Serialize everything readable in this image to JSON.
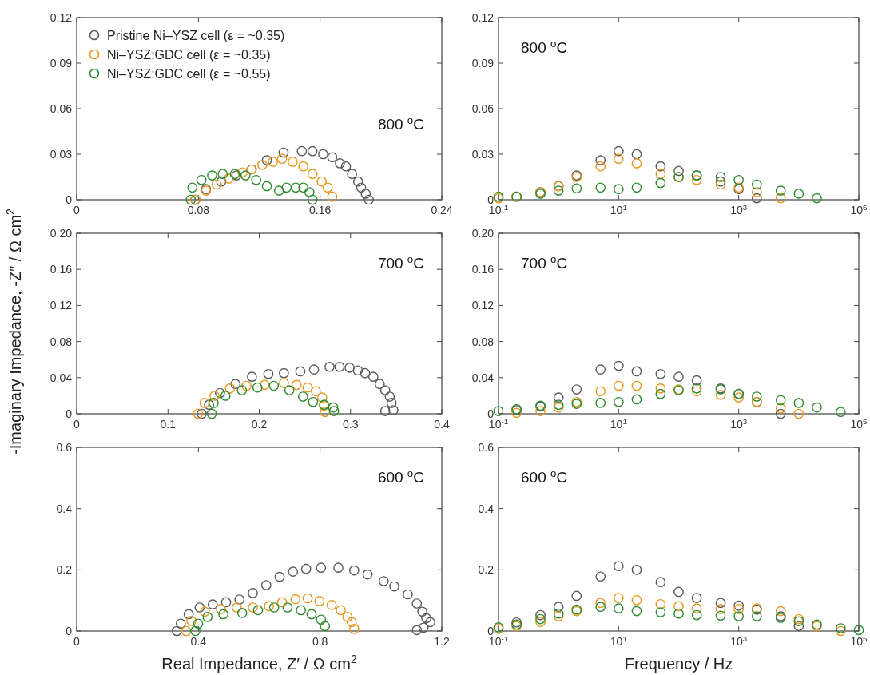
{
  "chart_data": [
    {
      "type": "scatter",
      "marker": "circle",
      "legend": "top left",
      "xlim": [
        0,
        0.24
      ],
      "xticks": [
        0,
        0.08,
        0.16,
        0.24
      ],
      "ylim": [
        0,
        0.12
      ],
      "yticks": [
        0,
        0.03,
        0.06,
        0.09,
        0.12
      ],
      "annotations": [
        "800 $^{o}$C"
      ],
      "series": [
        {
          "name": "Pristine Ni–YSZ cell (ε = ~0.35)",
          "color": "#5a5a5a",
          "x": [
            0.078,
            0.085,
            0.095,
            0.105,
            0.115,
            0.125,
            0.136,
            0.148,
            0.155,
            0.162,
            0.168,
            0.173,
            0.177,
            0.181,
            0.185,
            0.187,
            0.19,
            0.192
          ],
          "values": [
            0,
            0.007,
            0.012,
            0.016,
            0.02,
            0.026,
            0.031,
            0.032,
            0.032,
            0.03,
            0.028,
            0.024,
            0.022,
            0.017,
            0.012,
            0.008,
            0.004,
            0
          ]
        },
        {
          "name": "Ni–YSZ:GDC cell (ε = ~0.35)",
          "color": "#e8961e",
          "x": [
            0.078,
            0.085,
            0.092,
            0.1,
            0.109,
            0.115,
            0.122,
            0.129,
            0.135,
            0.142,
            0.149,
            0.155,
            0.161,
            0.165,
            0.168
          ],
          "values": [
            0,
            0.006,
            0.01,
            0.014,
            0.018,
            0.02,
            0.023,
            0.025,
            0.027,
            0.025,
            0.022,
            0.017,
            0.012,
            0.008,
            0.002
          ]
        },
        {
          "name": "Ni–YSZ:GDC cell (ε = ~0.55)",
          "color": "#2e8b2e",
          "x": [
            0.075,
            0.076,
            0.082,
            0.089,
            0.096,
            0.104,
            0.111,
            0.118,
            0.125,
            0.133,
            0.138,
            0.144,
            0.149,
            0.153,
            0.155
          ],
          "values": [
            0,
            0.008,
            0.013,
            0.016,
            0.017,
            0.017,
            0.016,
            0.013,
            0.009,
            0.006,
            0.008,
            0.008,
            0.008,
            0.005,
            0
          ]
        }
      ]
    },
    {
      "type": "scatter",
      "marker": "circle",
      "log": "x",
      "x": [
        0.1,
        0.2,
        0.5,
        1,
        2,
        5,
        10,
        20,
        50,
        100,
        200,
        500,
        1000,
        2000,
        5000,
        10000,
        20000
      ],
      "xlim": [
        0.1,
        100000
      ],
      "xticks": [
        {
          "value": 0.1,
          "label": "10$^{-1}$"
        },
        {
          "value": 10,
          "label": "10$^{1}$"
        },
        {
          "value": 1000,
          "label": "10$^{3}$"
        },
        {
          "value": 100000,
          "label": "10$^{5}$"
        }
      ],
      "ylim": [
        0,
        0.12
      ],
      "yticks": [
        0,
        0.03,
        0.06,
        0.09,
        0.12
      ],
      "annotations": [
        "800 $^{o}$C"
      ],
      "series": [
        {
          "color": "#5a5a5a",
          "values": [
            null,
            null,
            0.005,
            0.009,
            0.016,
            0.026,
            0.032,
            0.03,
            0.022,
            0.019,
            0.016,
            0.012,
            0.007,
            0.001,
            null,
            null,
            null
          ]
        },
        {
          "color": "#e8961e",
          "values": [
            0.001,
            0.002,
            0.005,
            0.009,
            0.015,
            0.022,
            0.027,
            0.024,
            0.017,
            0.015,
            0.013,
            0.01,
            0.008,
            0.005,
            0.001,
            null,
            null
          ]
        },
        {
          "color": "#2e8b2e",
          "values": [
            0.002,
            0.002,
            0.004,
            0.006,
            0.0075,
            0.008,
            0.007,
            0.008,
            0.011,
            0.015,
            0.016,
            0.015,
            0.013,
            0.01,
            0.006,
            0.004,
            0.001
          ]
        }
      ]
    },
    {
      "type": "scatter",
      "marker": "circle",
      "ylabel": "-Imaginary Impedance, -Z″ / Ω cm$^{2}$",
      "xlim": [
        0,
        0.4
      ],
      "xticks": [
        0,
        0.1,
        0.2,
        0.3,
        0.4
      ],
      "ylim": [
        0,
        0.2
      ],
      "yticks": [
        0,
        0.04,
        0.08,
        0.12,
        0.16,
        {
          "value": 0.2,
          "label": "0.20"
        }
      ],
      "annotations": [
        "700 $^{o}$C"
      ],
      "series": [
        {
          "color": "#5a5a5a",
          "x": [
            0.137,
            0.145,
            0.157,
            0.174,
            0.192,
            0.21,
            0.227,
            0.245,
            0.26,
            0.277,
            0.288,
            0.299,
            0.308,
            0.316,
            0.325,
            0.332,
            0.338,
            0.343,
            0.345,
            0.347,
            0.338
          ],
          "values": [
            0,
            0.01,
            0.023,
            0.033,
            0.041,
            0.044,
            0.045,
            0.047,
            0.049,
            0.052,
            0.052,
            0.051,
            0.048,
            0.045,
            0.041,
            0.033,
            0.026,
            0.019,
            0.012,
            0.004,
            0.003
          ]
        },
        {
          "color": "#e8961e",
          "x": [
            0.133,
            0.14,
            0.151,
            0.168,
            0.186,
            0.206,
            0.227,
            0.241,
            0.253,
            0.262,
            0.269,
            0.271,
            0.272
          ],
          "values": [
            0,
            0.012,
            0.02,
            0.028,
            0.031,
            0.032,
            0.034,
            0.032,
            0.029,
            0.025,
            0.018,
            0.009,
            0.002
          ]
        },
        {
          "color": "#2e8b2e",
          "x": [
            0.148,
            0.15,
            0.163,
            0.181,
            0.198,
            0.216,
            0.233,
            0.248,
            0.259,
            0.271,
            0.281,
            0.282
          ],
          "values": [
            0,
            0.012,
            0.02,
            0.026,
            0.029,
            0.031,
            0.026,
            0.019,
            0.013,
            0.01,
            0.007,
            0.003
          ]
        }
      ]
    },
    {
      "type": "scatter",
      "marker": "circle",
      "log": "x",
      "x": [
        0.1,
        0.2,
        0.5,
        1,
        2,
        5,
        10,
        20,
        50,
        100,
        200,
        500,
        1000,
        2000,
        5000,
        10000,
        20000,
        50000
      ],
      "xlim": [
        0.1,
        100000
      ],
      "xticks": [
        {
          "value": 0.1,
          "label": "10$^{-1}$"
        },
        {
          "value": 10,
          "label": "10$^{1}$"
        },
        {
          "value": 1000,
          "label": "10$^{3}$"
        },
        {
          "value": 100000,
          "label": "10$^{5}$"
        }
      ],
      "ylim": [
        0,
        0.2
      ],
      "yticks": [
        0,
        0.04,
        0.08,
        0.12,
        0.16,
        {
          "value": 0.2,
          "label": "0.20"
        }
      ],
      "annotations": [
        "700 $^{o}$C"
      ],
      "series": [
        {
          "color": "#5a5a5a",
          "values": [
            null,
            0.004,
            0.008,
            0.018,
            0.027,
            0.049,
            0.053,
            0.047,
            0.044,
            0.041,
            0.037,
            0.028,
            0.022,
            0.013,
            0,
            null,
            null,
            null
          ]
        },
        {
          "color": "#e8961e",
          "values": [
            null,
            0.001,
            0.003,
            0.007,
            0.013,
            0.025,
            0.031,
            0.031,
            0.028,
            0.027,
            0.025,
            0.021,
            0.018,
            0.013,
            0.006,
            0,
            null,
            null
          ]
        },
        {
          "color": "#2e8b2e",
          "values": [
            0.003,
            0.005,
            0.009,
            0.01,
            0.011,
            0.012,
            0.013,
            0.016,
            0.022,
            0.026,
            0.028,
            0.027,
            0.022,
            0.019,
            0.015,
            0.012,
            0.007,
            0.002
          ]
        }
      ]
    },
    {
      "type": "scatter",
      "marker": "circle",
      "xlabel": "Real Impedance, Z′ / Ω cm$^{2}$",
      "xlim": [
        0,
        1.2
      ],
      "xticks": [
        0,
        0.4,
        0.8,
        1.2
      ],
      "ylim": [
        0,
        0.6
      ],
      "yticks": [
        0,
        0.2,
        0.4,
        0.6
      ],
      "annotations": [
        "600 $^{o}$C"
      ],
      "series": [
        {
          "color": "#5a5a5a",
          "x": [
            0.329,
            0.342,
            0.368,
            0.404,
            0.447,
            0.491,
            0.535,
            0.579,
            0.623,
            0.667,
            0.711,
            0.754,
            0.803,
            0.86,
            0.912,
            0.956,
            1.009,
            1.044,
            1.088,
            1.118,
            1.136,
            1.149,
            1.162,
            1.14,
            1.118
          ],
          "values": [
            0,
            0.024,
            0.055,
            0.077,
            0.087,
            0.094,
            0.103,
            0.124,
            0.15,
            0.177,
            0.194,
            0.203,
            0.207,
            0.207,
            0.198,
            0.185,
            0.163,
            0.146,
            0.12,
            0.09,
            0.063,
            0.042,
            0.029,
            0.011,
            0.003
          ]
        },
        {
          "color": "#e8961e",
          "x": [
            0.36,
            0.377,
            0.421,
            0.474,
            0.526,
            0.579,
            0.632,
            0.675,
            0.719,
            0.759,
            0.798,
            0.838,
            0.868,
            0.89,
            0.904,
            0.912
          ],
          "values": [
            0,
            0.033,
            0.063,
            0.072,
            0.077,
            0.077,
            0.081,
            0.094,
            0.104,
            0.107,
            0.098,
            0.085,
            0.068,
            0.046,
            0.029,
            0.007
          ]
        },
        {
          "color": "#2e8b2e",
          "x": [
            0.39,
            0.399,
            0.43,
            0.482,
            0.544,
            0.596,
            0.649,
            0.693,
            0.737,
            0.772,
            0.803,
            0.816
          ],
          "values": [
            0,
            0.024,
            0.046,
            0.055,
            0.059,
            0.068,
            0.077,
            0.077,
            0.068,
            0.055,
            0.037,
            0.016
          ]
        }
      ]
    },
    {
      "type": "scatter",
      "marker": "circle",
      "log": "x",
      "xlabel": "Frequency / Hz",
      "x": [
        0.1,
        0.2,
        0.5,
        1,
        2,
        5,
        10,
        20,
        50,
        100,
        200,
        500,
        1000,
        2000,
        5000,
        10000,
        20000,
        50000,
        100000
      ],
      "xlim": [
        0.1,
        100000
      ],
      "xticks": [
        {
          "value": 0.1,
          "label": "10$^{-1}$"
        },
        {
          "value": 10,
          "label": "10$^{1}$"
        },
        {
          "value": 1000,
          "label": "10$^{3}$"
        },
        {
          "value": 100000,
          "label": "10$^{5}$"
        }
      ],
      "ylim": [
        0,
        0.6
      ],
      "yticks": [
        0,
        0.2,
        0.4,
        0.6
      ],
      "annotations": [
        "600 $^{o}$C"
      ],
      "series": [
        {
          "color": "#5a5a5a",
          "values": [
            null,
            0.028,
            0.052,
            0.079,
            0.115,
            0.178,
            0.212,
            0.2,
            0.16,
            0.128,
            0.108,
            0.092,
            0.083,
            0.07,
            0.048,
            0.016,
            null,
            null,
            null
          ]
        },
        {
          "color": "#e8961e",
          "values": [
            0.007,
            0.016,
            0.03,
            0.048,
            0.065,
            0.092,
            0.108,
            0.101,
            0.088,
            0.081,
            0.074,
            0.072,
            0.072,
            0.074,
            0.065,
            0.039,
            0.016,
            0,
            null
          ]
        },
        {
          "color": "#2e8b2e",
          "values": [
            0.012,
            0.021,
            0.039,
            0.057,
            0.07,
            0.079,
            0.074,
            0.065,
            0.061,
            0.057,
            0.052,
            0.05,
            0.048,
            0.048,
            0.043,
            0.032,
            0.021,
            0.009,
            0.003
          ]
        }
      ]
    }
  ]
}
